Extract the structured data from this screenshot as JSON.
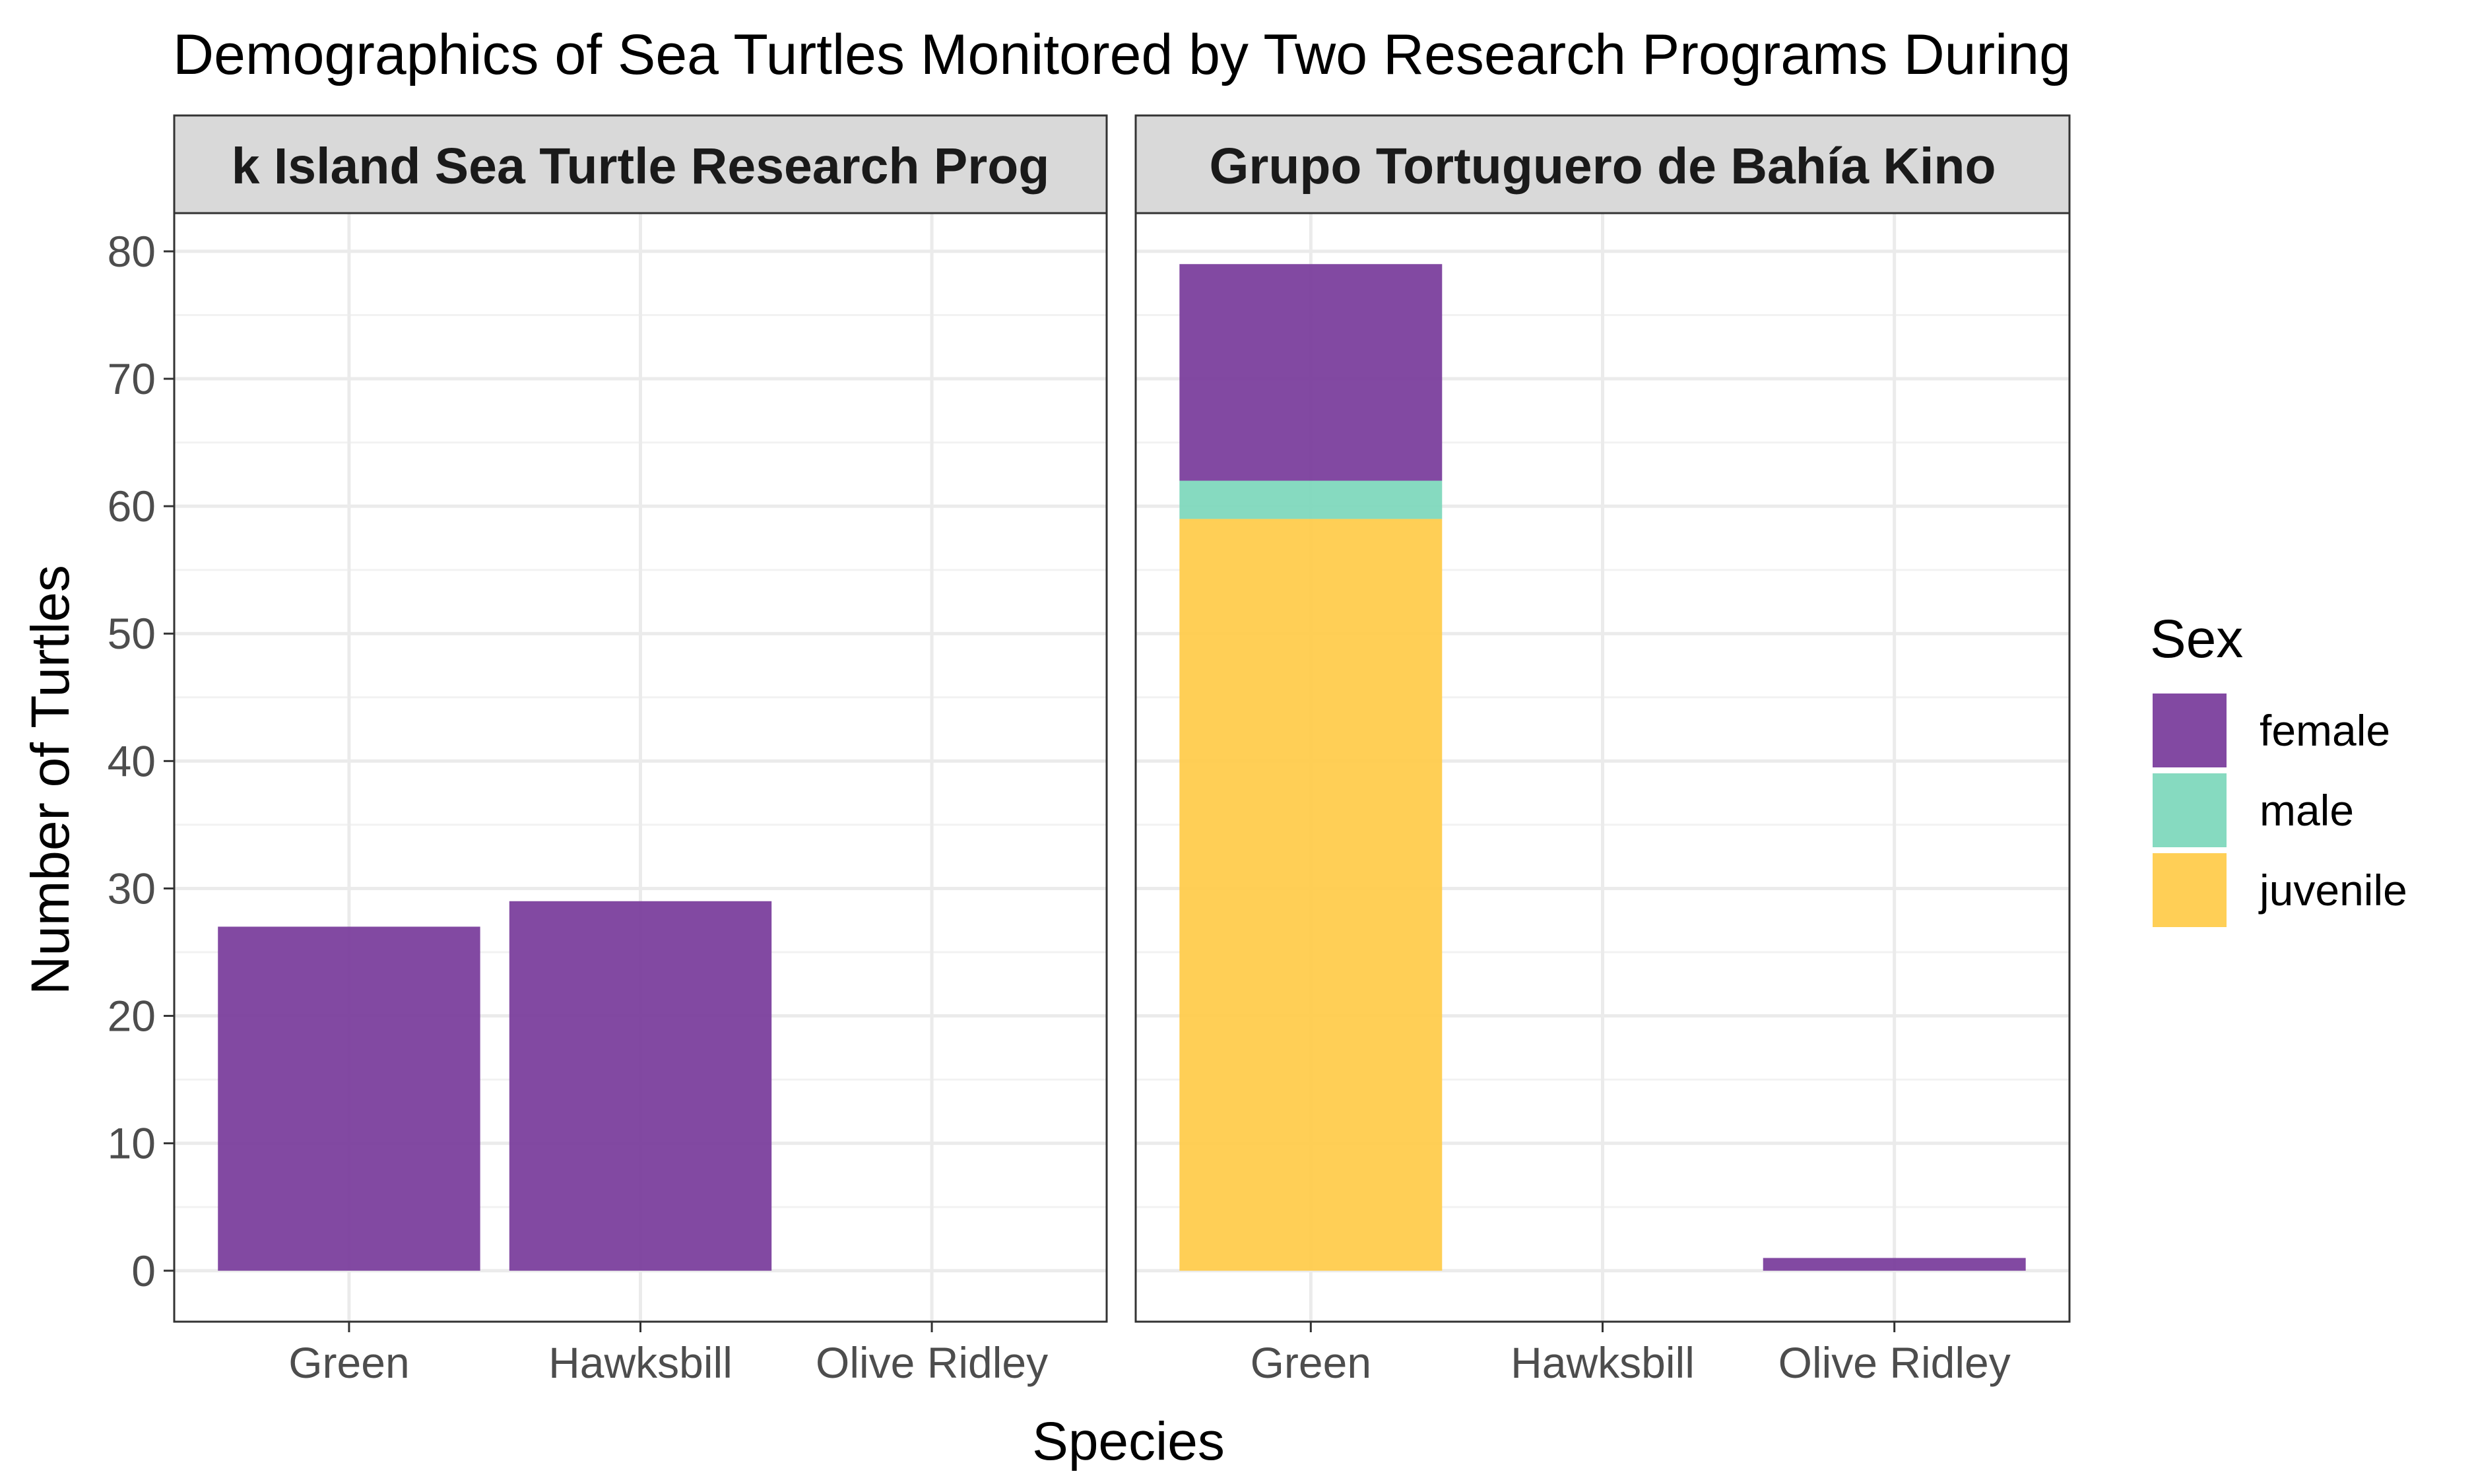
{
  "chart_data": {
    "type": "bar",
    "stacked": true,
    "title": "Demographics of Sea Turtles Monitored by Two Research Programs During",
    "xlabel": "Species",
    "ylabel": "Number of Turtles",
    "ylim": [
      -4,
      83
    ],
    "yticks": [
      0,
      10,
      20,
      30,
      40,
      50,
      60,
      70,
      80
    ],
    "grid": true,
    "legend": {
      "title": "Sex",
      "position": "right"
    },
    "categories": [
      "Green",
      "Hawksbill",
      "Olive Ridley"
    ],
    "panels": [
      {
        "label": "k Island Sea Turtle Research Prog",
        "series": [
          {
            "name": "female",
            "values": [
              27,
              29,
              0
            ]
          },
          {
            "name": "male",
            "values": [
              0,
              0,
              0
            ]
          },
          {
            "name": "juvenile",
            "values": [
              0,
              0,
              0
            ]
          }
        ]
      },
      {
        "label": "Grupo Tortuguero de Bahía Kino",
        "series": [
          {
            "name": "female",
            "values": [
              17,
              0,
              1
            ]
          },
          {
            "name": "male",
            "values": [
              3,
              0,
              0
            ]
          },
          {
            "name": "juvenile",
            "values": [
              59,
              0,
              0
            ]
          }
        ]
      }
    ],
    "colors": {
      "female": "#7b3f9d",
      "male": "#80d8bd",
      "juvenile": "#ffcc4d"
    },
    "stack_order_bottom_to_top": [
      "juvenile",
      "male",
      "female"
    ]
  }
}
